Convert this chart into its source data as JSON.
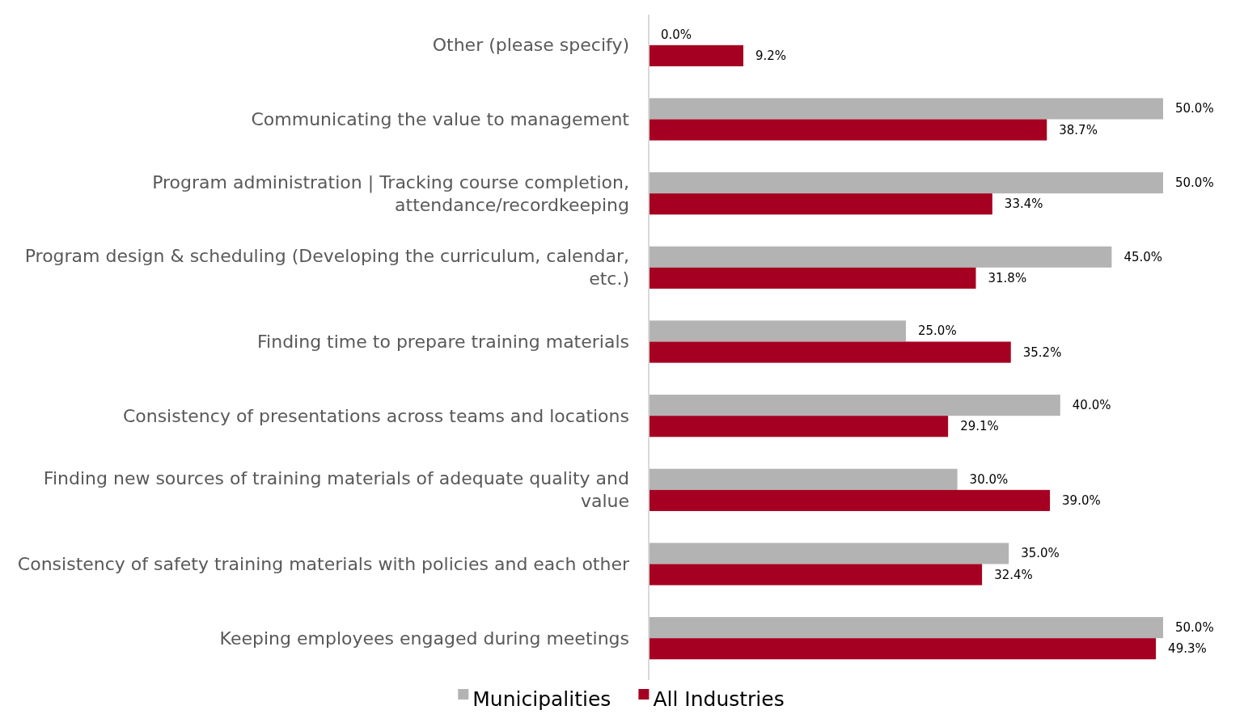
{
  "chart_data": {
    "type": "bar",
    "orientation": "horizontal",
    "categories": [
      "Other (please specify)",
      "Communicating the value to management",
      "Program administration | Tracking course completion, attendance/recordkeeping",
      "Program design & scheduling (Developing the curriculum, calendar, etc.)",
      "Finding time to prepare training materials",
      "Consistency of presentations across teams and locations",
      "Finding new sources of training materials of adequate quality and value",
      "Consistency of safety training materials with policies and each other",
      "Keeping employees engaged during meetings"
    ],
    "series": [
      {
        "name": "Municipalities",
        "color": "#b3b3b3",
        "values": [
          0.0,
          50.0,
          50.0,
          45.0,
          25.0,
          40.0,
          30.0,
          35.0,
          50.0
        ],
        "value_labels": [
          "0.0%",
          "50.0%",
          "50.0%",
          "45.0%",
          "25.0%",
          "40.0%",
          "30.0%",
          "35.0%",
          "50.0%"
        ]
      },
      {
        "name": "All Industries",
        "color": "#a50021",
        "values": [
          9.2,
          38.7,
          33.4,
          31.8,
          35.2,
          29.1,
          39.0,
          32.4,
          49.3
        ],
        "value_labels": [
          "9.2%",
          "38.7%",
          "33.4%",
          "31.8%",
          "35.2%",
          "29.1%",
          "39.0%",
          "32.4%",
          "49.3%"
        ]
      }
    ],
    "legend": "bottom"
  }
}
